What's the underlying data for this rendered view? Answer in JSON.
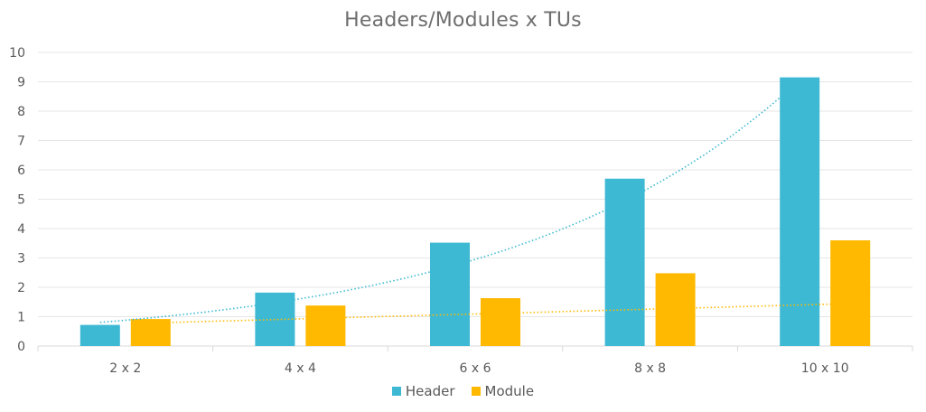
{
  "chart_data": {
    "type": "bar",
    "title": "Headers/Modules x TUs",
    "categories": [
      "2 x 2",
      "4 x 4",
      "6 x 6",
      "8 x 8",
      "10 x 10"
    ],
    "series": [
      {
        "name": "Header",
        "color": "#3db9d3",
        "values": [
          0.72,
          1.82,
          3.52,
          5.7,
          9.15
        ]
      },
      {
        "name": "Module",
        "color": "#ffb900",
        "values": [
          0.92,
          1.38,
          1.63,
          2.48,
          3.6
        ]
      }
    ],
    "trendlines": [
      {
        "series": "Header",
        "type": "exponential",
        "style": "dotted",
        "color": "#3db9d3",
        "a": 0.44,
        "b": 0.605
      },
      {
        "series": "Module",
        "type": "linear",
        "style": "dotted",
        "color": "#ffb900",
        "a": 0.165,
        "b": 0.62
      }
    ],
    "y_ticks": [
      0,
      1,
      2,
      3,
      4,
      5,
      6,
      7,
      8,
      9,
      10
    ],
    "ylim": [
      0,
      10
    ],
    "xlabel": "",
    "ylabel": "",
    "grid": true,
    "legend_position": "bottom"
  }
}
